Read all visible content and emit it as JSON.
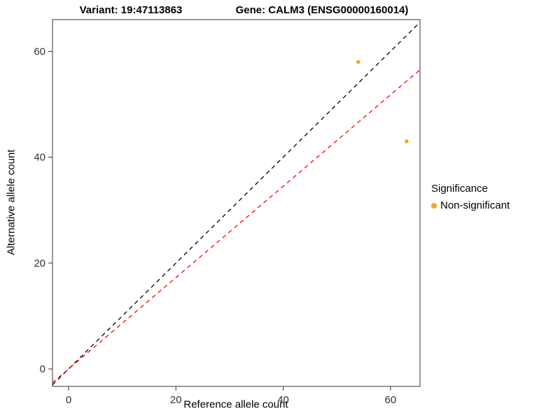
{
  "chart_data": {
    "type": "scatter",
    "title_left": "Variant: 19:47113863",
    "title_right": "Gene: CALM3 (ENSG00000160014)",
    "xlabel": "Reference allele count",
    "ylabel": "Alternative allele count",
    "xlim": [
      -3,
      65.5
    ],
    "ylim": [
      -3.3,
      66
    ],
    "xticks": [
      0,
      20,
      40,
      60
    ],
    "yticks": [
      0,
      20,
      40,
      60
    ],
    "grid": false,
    "panel_border_color": "#333333",
    "axis_text_color": "#333333",
    "point_color": "#F5A623",
    "point_radius": 2.8,
    "points": [
      {
        "x": 54,
        "y": 58,
        "series": "Non-significant"
      },
      {
        "x": 63,
        "y": 43,
        "series": "Non-significant"
      }
    ],
    "lines": [
      {
        "name": "identity-line",
        "slope": 1,
        "intercept": 0,
        "color": "#000000",
        "style": "dashed"
      },
      {
        "name": "expected-ratio-line",
        "slope": 0.863,
        "intercept": 0,
        "color": "#FF0000",
        "style": "dashed"
      }
    ],
    "legend": {
      "title": "Significance",
      "position": "right",
      "entries": [
        {
          "label": "Non-significant",
          "color": "#F5A623"
        }
      ]
    }
  }
}
